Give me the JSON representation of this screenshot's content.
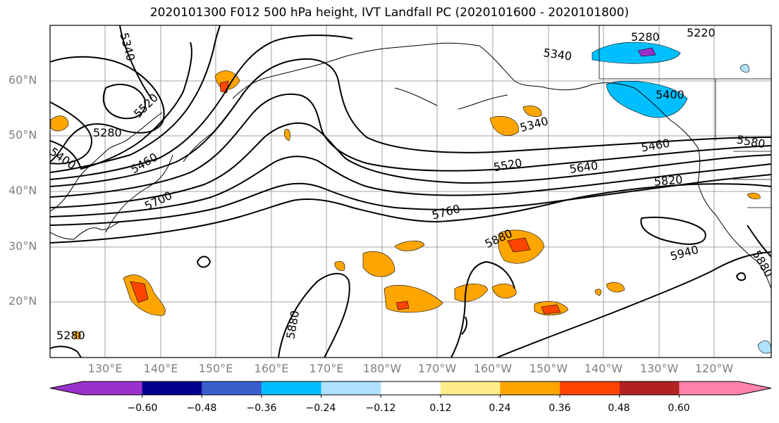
{
  "title": "2020101300 F012 500 hPa height, IVT Landfall PC (2020101600 - 2020101800)",
  "lat_labels": [
    "60°N",
    "50°N",
    "40°N",
    "30°N",
    "20°N"
  ],
  "lon_labels": [
    "130°E",
    "140°E",
    "150°E",
    "160°E",
    "170°E",
    "180°W",
    "170°W",
    "160°W",
    "150°W",
    "140°W",
    "130°W",
    "120°W"
  ],
  "contour_labels": [
    "5340",
    "5280",
    "5220",
    "5340",
    "5400",
    "5280",
    "5400",
    "5460",
    "5520",
    "5340",
    "5520",
    "5640",
    "5460",
    "5580",
    "5700",
    "5760",
    "5820",
    "5880",
    "5940",
    "5880",
    "5280",
    "5880"
  ],
  "colorbar": {
    "colors": [
      "#9932cc",
      "#00008b",
      "#3a5fcd",
      "#00bfff",
      "#b0e2ff",
      "#ffffff",
      "#ffec8b",
      "#ffa500",
      "#ff4500",
      "#b22222",
      "#ff82ab"
    ],
    "ticks": [
      "−0.60",
      "−0.48",
      "−0.36",
      "−0.24",
      "−0.12",
      "0.12",
      "0.24",
      "0.36",
      "0.48",
      "0.60"
    ]
  }
}
